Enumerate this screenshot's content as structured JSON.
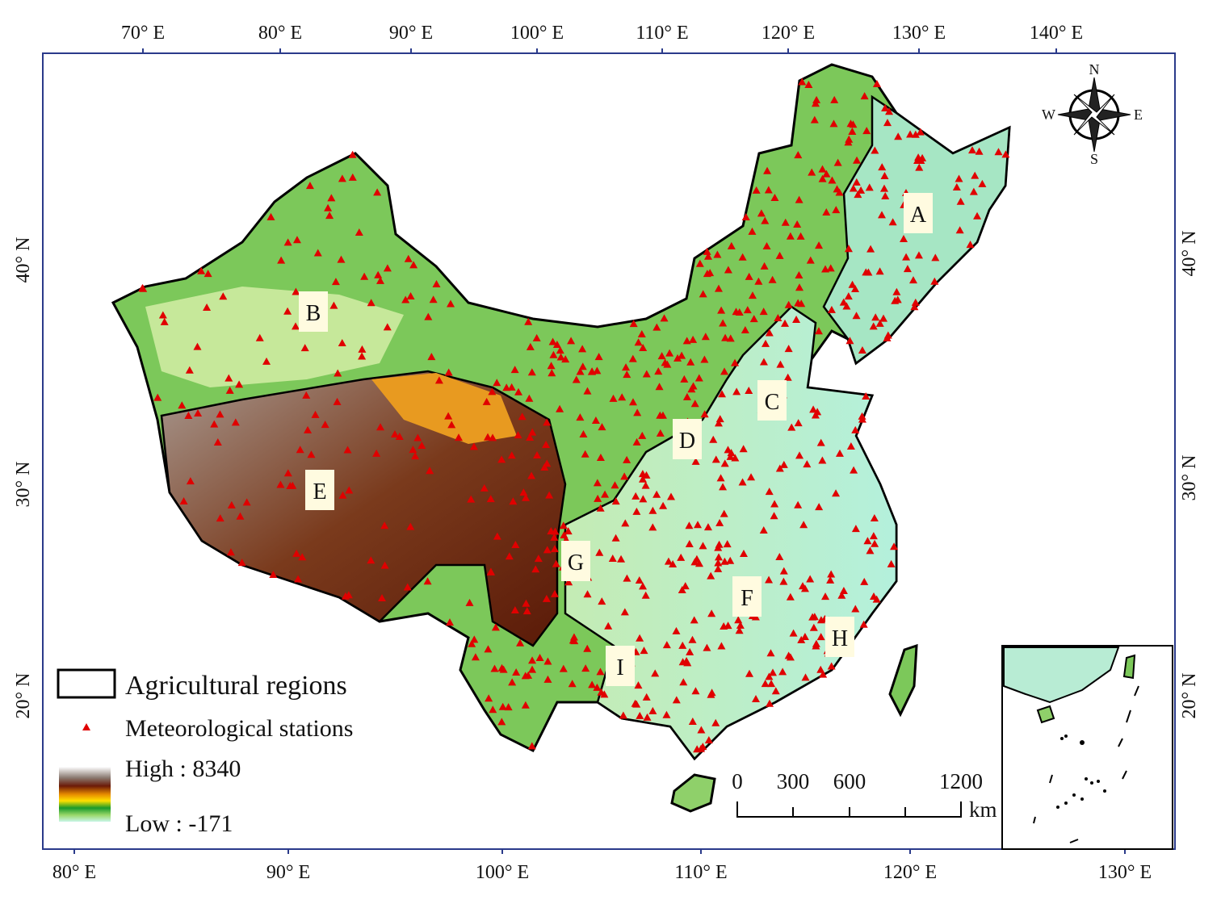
{
  "map": {
    "top_axis": [
      "70° E",
      "80° E",
      "90° E",
      "100° E",
      "110° E",
      "120° E",
      "130° E",
      "140° E"
    ],
    "bottom_axis": [
      "80° E",
      "90° E",
      "100° E",
      "110° E",
      "120° E",
      "130° E"
    ],
    "left_axis": [
      "40° N",
      "30° N",
      "20° N"
    ],
    "right_axis": [
      "40° N",
      "30° N",
      "20° N"
    ],
    "regions": [
      "A",
      "B",
      "C",
      "D",
      "E",
      "F",
      "G",
      "H",
      "I"
    ],
    "legend": {
      "regions": "Agricultural regions",
      "stations": "Meteorological stations",
      "high": "High : 8340",
      "low": "Low : -171"
    },
    "scale_bar": {
      "ticks": [
        "0",
        "300",
        "600",
        "1200"
      ],
      "unit": "km"
    },
    "compass": {
      "n": "N",
      "s": "S",
      "e": "E",
      "w": "W"
    }
  }
}
